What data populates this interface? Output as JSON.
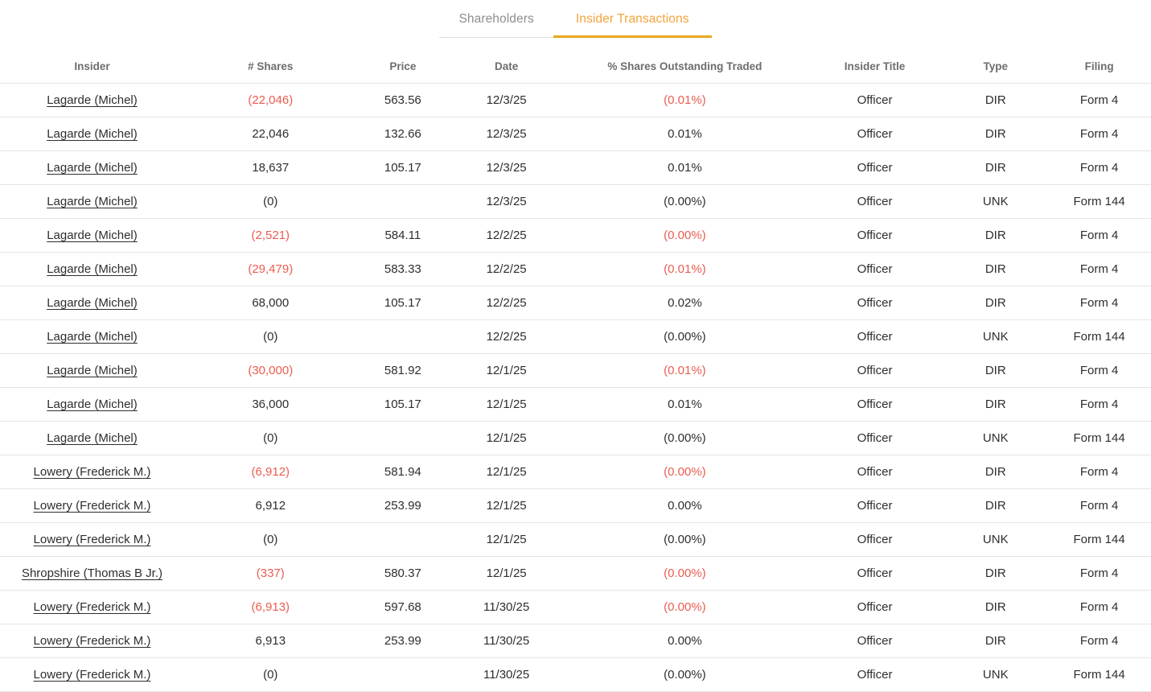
{
  "tabs": [
    {
      "label": "Shareholders",
      "active": false
    },
    {
      "label": "Insider Transactions",
      "active": true
    }
  ],
  "colors": {
    "accent": "#F2A43A",
    "accent_underline": "#E7A81F",
    "negative": "#EA5D50",
    "row_text": "#2E2E2E",
    "header_text": "#6D6D6D",
    "inactive_tab": "#8E8E8E",
    "divider": "#E5E5E7"
  },
  "table": {
    "columns": [
      "Insider",
      "# Shares",
      "Price",
      "Date",
      "% Shares Outstanding Traded",
      "Insider Title",
      "Type",
      "Filing"
    ],
    "rows": [
      {
        "insider": "Lagarde (Michel)",
        "shares": "(22,046)",
        "shares_negative": true,
        "price": "563.56",
        "date": "12/3/25",
        "pct_traded": "(0.01%)",
        "pct_negative": true,
        "insider_title": "Officer",
        "type": "DIR",
        "filing": "Form 4"
      },
      {
        "insider": "Lagarde (Michel)",
        "shares": "22,046",
        "shares_negative": false,
        "price": "132.66",
        "date": "12/3/25",
        "pct_traded": "0.01%",
        "pct_negative": false,
        "insider_title": "Officer",
        "type": "DIR",
        "filing": "Form 4"
      },
      {
        "insider": "Lagarde (Michel)",
        "shares": "18,637",
        "shares_negative": false,
        "price": "105.17",
        "date": "12/3/25",
        "pct_traded": "0.01%",
        "pct_negative": false,
        "insider_title": "Officer",
        "type": "DIR",
        "filing": "Form 4"
      },
      {
        "insider": "Lagarde (Michel)",
        "shares": "(0)",
        "shares_negative": false,
        "price": "",
        "date": "12/3/25",
        "pct_traded": "(0.00%)",
        "pct_negative": false,
        "insider_title": "Officer",
        "type": "UNK",
        "filing": "Form 144"
      },
      {
        "insider": "Lagarde (Michel)",
        "shares": "(2,521)",
        "shares_negative": true,
        "price": "584.11",
        "date": "12/2/25",
        "pct_traded": "(0.00%)",
        "pct_negative": true,
        "insider_title": "Officer",
        "type": "DIR",
        "filing": "Form 4"
      },
      {
        "insider": "Lagarde (Michel)",
        "shares": "(29,479)",
        "shares_negative": true,
        "price": "583.33",
        "date": "12/2/25",
        "pct_traded": "(0.01%)",
        "pct_negative": true,
        "insider_title": "Officer",
        "type": "DIR",
        "filing": "Form 4"
      },
      {
        "insider": "Lagarde (Michel)",
        "shares": "68,000",
        "shares_negative": false,
        "price": "105.17",
        "date": "12/2/25",
        "pct_traded": "0.02%",
        "pct_negative": false,
        "insider_title": "Officer",
        "type": "DIR",
        "filing": "Form 4"
      },
      {
        "insider": "Lagarde (Michel)",
        "shares": "(0)",
        "shares_negative": false,
        "price": "",
        "date": "12/2/25",
        "pct_traded": "(0.00%)",
        "pct_negative": false,
        "insider_title": "Officer",
        "type": "UNK",
        "filing": "Form 144"
      },
      {
        "insider": "Lagarde (Michel)",
        "shares": "(30,000)",
        "shares_negative": true,
        "price": "581.92",
        "date": "12/1/25",
        "pct_traded": "(0.01%)",
        "pct_negative": true,
        "insider_title": "Officer",
        "type": "DIR",
        "filing": "Form 4"
      },
      {
        "insider": "Lagarde (Michel)",
        "shares": "36,000",
        "shares_negative": false,
        "price": "105.17",
        "date": "12/1/25",
        "pct_traded": "0.01%",
        "pct_negative": false,
        "insider_title": "Officer",
        "type": "DIR",
        "filing": "Form 4"
      },
      {
        "insider": "Lagarde (Michel)",
        "shares": "(0)",
        "shares_negative": false,
        "price": "",
        "date": "12/1/25",
        "pct_traded": "(0.00%)",
        "pct_negative": false,
        "insider_title": "Officer",
        "type": "UNK",
        "filing": "Form 144"
      },
      {
        "insider": "Lowery (Frederick M.)",
        "shares": "(6,912)",
        "shares_negative": true,
        "price": "581.94",
        "date": "12/1/25",
        "pct_traded": "(0.00%)",
        "pct_negative": true,
        "insider_title": "Officer",
        "type": "DIR",
        "filing": "Form 4"
      },
      {
        "insider": "Lowery (Frederick M.)",
        "shares": "6,912",
        "shares_negative": false,
        "price": "253.99",
        "date": "12/1/25",
        "pct_traded": "0.00%",
        "pct_negative": false,
        "insider_title": "Officer",
        "type": "DIR",
        "filing": "Form 4"
      },
      {
        "insider": "Lowery (Frederick M.)",
        "shares": "(0)",
        "shares_negative": false,
        "price": "",
        "date": "12/1/25",
        "pct_traded": "(0.00%)",
        "pct_negative": false,
        "insider_title": "Officer",
        "type": "UNK",
        "filing": "Form 144"
      },
      {
        "insider": "Shropshire (Thomas B Jr.)",
        "shares": "(337)",
        "shares_negative": true,
        "price": "580.37",
        "date": "12/1/25",
        "pct_traded": "(0.00%)",
        "pct_negative": true,
        "insider_title": "Officer",
        "type": "DIR",
        "filing": "Form 4"
      },
      {
        "insider": "Lowery (Frederick M.)",
        "shares": "(6,913)",
        "shares_negative": true,
        "price": "597.68",
        "date": "11/30/25",
        "pct_traded": "(0.00%)",
        "pct_negative": true,
        "insider_title": "Officer",
        "type": "DIR",
        "filing": "Form 4"
      },
      {
        "insider": "Lowery (Frederick M.)",
        "shares": "6,913",
        "shares_negative": false,
        "price": "253.99",
        "date": "11/30/25",
        "pct_traded": "0.00%",
        "pct_negative": false,
        "insider_title": "Officer",
        "type": "DIR",
        "filing": "Form 4"
      },
      {
        "insider": "Lowery (Frederick M.)",
        "shares": "(0)",
        "shares_negative": false,
        "price": "",
        "date": "11/30/25",
        "pct_traded": "(0.00%)",
        "pct_negative": false,
        "insider_title": "Officer",
        "type": "UNK",
        "filing": "Form 144"
      }
    ]
  }
}
